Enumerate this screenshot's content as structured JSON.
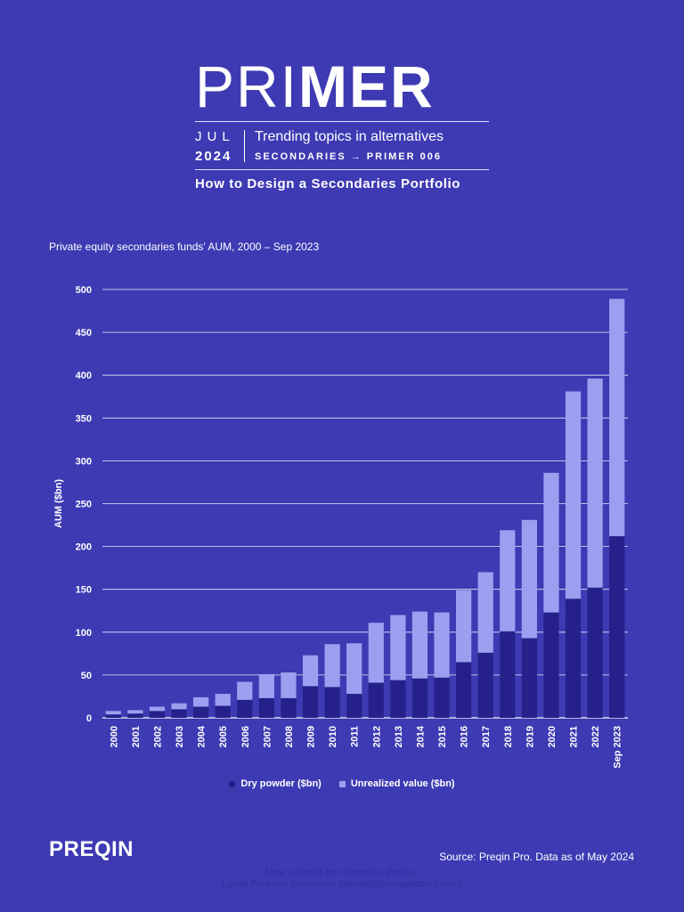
{
  "header": {
    "logo_light": "PRI",
    "logo_bold": "MER",
    "month": "JUL",
    "year": "2024",
    "topic_line": "Trending topics in alternatives",
    "series_line": "SECONDARIES → PRIMER 006",
    "subtitle": "How to Design a Secondaries Portfolio"
  },
  "chart_title": "Private equity secondaries funds' AUM, 2000 – Sep 2023",
  "chart_data": {
    "type": "bar",
    "stacked": true,
    "categories": [
      "2000",
      "2001",
      "2002",
      "2003",
      "2004",
      "2005",
      "2006",
      "2007",
      "2008",
      "2009",
      "2010",
      "2011",
      "2012",
      "2013",
      "2014",
      "2015",
      "2016",
      "2017",
      "2018",
      "2019",
      "2020",
      "2021",
      "2022",
      "Sep 2023"
    ],
    "series": [
      {
        "name": "Dry powder ($bn)",
        "color": "#26218a",
        "values": [
          4,
          5,
          8,
          10,
          13,
          14,
          21,
          23,
          23,
          37,
          36,
          28,
          41,
          44,
          46,
          47,
          65,
          76,
          101,
          93,
          123,
          139,
          152,
          212
        ]
      },
      {
        "name": "Unrealized value ($bn)",
        "color": "#9c9ff0",
        "values": [
          4,
          4,
          5,
          7,
          11,
          14,
          21,
          28,
          30,
          36,
          50,
          59,
          70,
          76,
          78,
          76,
          84,
          94,
          118,
          138,
          163,
          242,
          244,
          277
        ]
      }
    ],
    "ylabel": "AUM ($bn)",
    "yticks": [
      0,
      50,
      100,
      150,
      200,
      250,
      300,
      350,
      400,
      450,
      500
    ],
    "ylim": [
      0,
      500
    ],
    "legend_position": "bottom-center"
  },
  "legend": {
    "dry_powder": "Dry powder ($bn)",
    "unrealized": "Unrealized value ($bn)"
  },
  "footer": {
    "brand": "PREQIN",
    "source": "Source: Preqin Pro. Data as of May 2024",
    "license_line1": "User License for Himanshu Periwal",
    "license_line2": "Lumis Partners [himanshu.periwal@lumispartners.com]"
  },
  "colors": {
    "background": "#3d3ab3",
    "dry_powder": "#26218a",
    "unrealized": "#9c9ff0"
  }
}
